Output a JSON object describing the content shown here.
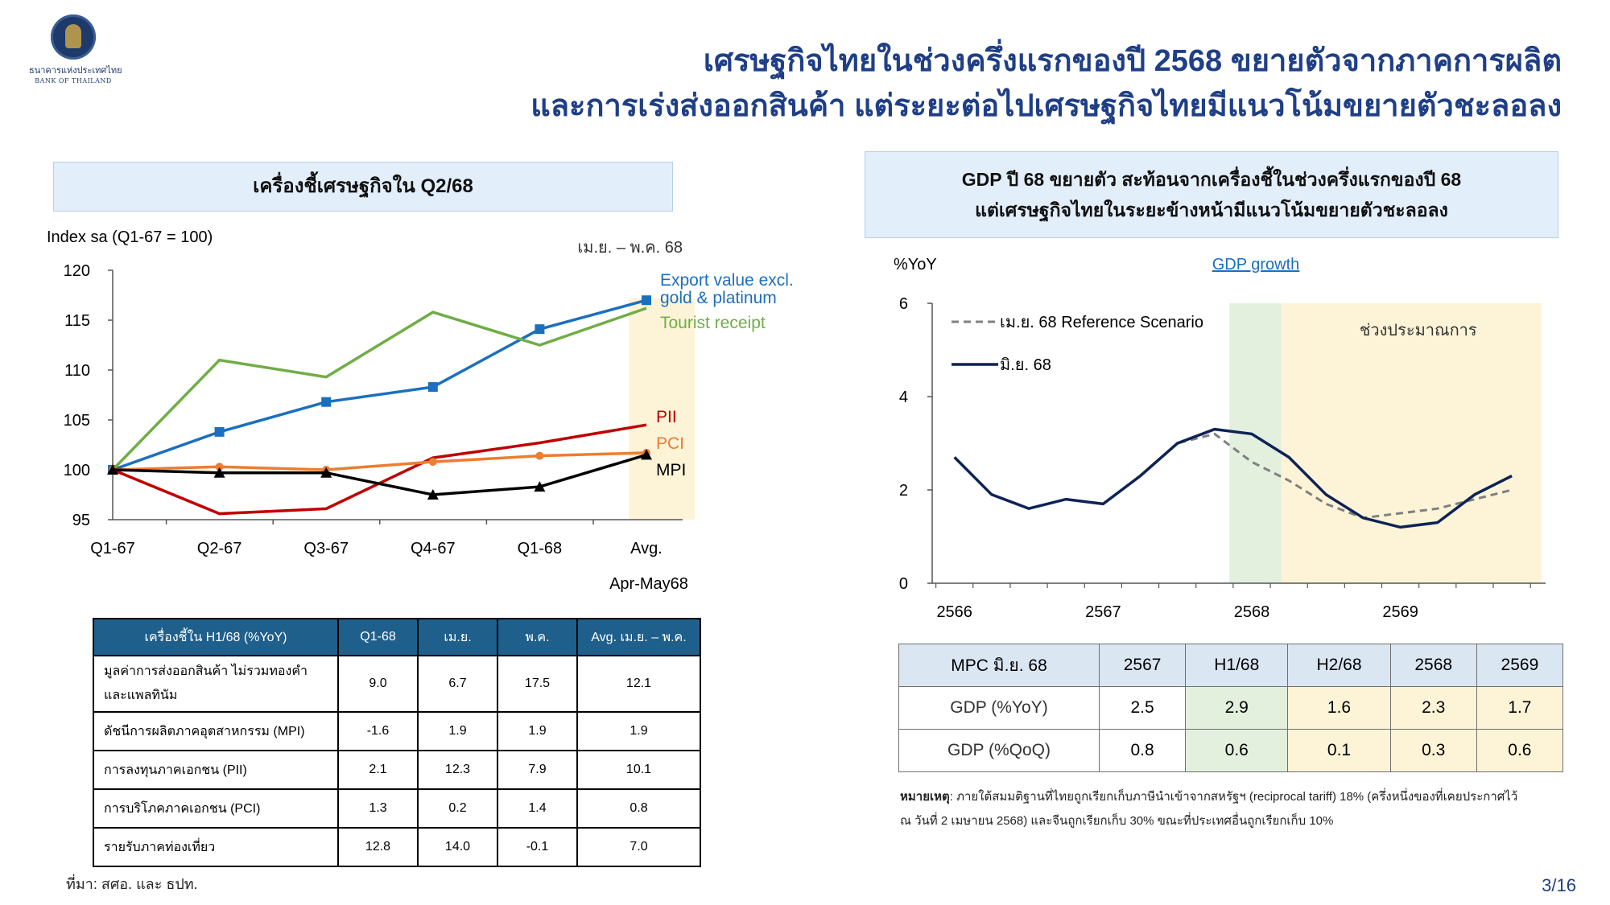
{
  "logo": {
    "thai": "ธนาคารแห่งประเทศไทย",
    "english": "BANK OF THAILAND"
  },
  "title": {
    "line1": "เศรษฐกิจไทยในช่วงครึ่งแรกของปี 2568 ขยายตัวจากภาคการผลิต",
    "line2": "และการเร่งส่งออกสินค้า แต่ระยะต่อไปเศรษฐกิจไทยมีแนวโน้มขยายตัวชะลอลง"
  },
  "left_header": "เครื่องชี้เศรษฐกิจใน Q2/68",
  "right_header": {
    "line1": "GDP ปี 68 ขยายตัว สะท้อนจากเครื่องชี้ในช่วงครึ่งแรกของปี 68",
    "line2": "แต่เศรษฐกิจไทยในระยะข้างหน้ามีแนวโน้มขยายตัวชะลอลง"
  },
  "chart_data": [
    {
      "type": "line",
      "ylabel": "Index sa (Q1-67 = 100)",
      "categories": [
        "Q1-67",
        "Q2-67",
        "Q3-67",
        "Q4-67",
        "Q1-68",
        "Avg."
      ],
      "extra_label": "Apr-May68",
      "shaded_label": "เม.ย. – พ.ค. 68",
      "ylim": [
        95,
        120
      ],
      "yticks": [
        95,
        100,
        105,
        110,
        115,
        120
      ],
      "series": [
        {
          "name": "Export value excl. gold & platinum",
          "name_line1": "Export value excl.",
          "name_line2": "gold & platinum",
          "color": "#1b6fbf",
          "marker": "square",
          "values": [
            100,
            103.8,
            106.8,
            108.3,
            114.1,
            117
          ]
        },
        {
          "name": "Tourist receipt",
          "color": "#70ad47",
          "marker": "none",
          "values": [
            100,
            111,
            109.3,
            115.8,
            112.5,
            116.2
          ]
        },
        {
          "name": "PII",
          "color": "#c00000",
          "marker": "none",
          "values": [
            100,
            95.6,
            96.1,
            101.2,
            102.7,
            104.5
          ]
        },
        {
          "name": "PCI",
          "color": "#ed7d31",
          "marker": "circle",
          "values": [
            100,
            100.3,
            100,
            100.8,
            101.4,
            101.7
          ]
        },
        {
          "name": "MPI",
          "color": "#000000",
          "marker": "triangle",
          "values": [
            100,
            99.7,
            99.7,
            97.5,
            98.3,
            101.5
          ]
        }
      ]
    },
    {
      "type": "line",
      "ylabel": "%YoY",
      "title": "GDP growth",
      "x_ticks": [
        "2566",
        "2567",
        "2568",
        "2569"
      ],
      "ylim": [
        0,
        6
      ],
      "yticks": [
        0,
        2,
        4,
        6
      ],
      "shaded_forecast_label": "ช่วงประมาณการ",
      "series": [
        {
          "name": "เม.ย. 68 Reference Scenario",
          "color": "#808080",
          "dash": true,
          "x": [
            2566.0,
            2566.25,
            2566.5,
            2566.75,
            2567.0,
            2567.25,
            2567.5,
            2567.75,
            2568.0,
            2568.25,
            2568.5,
            2568.75,
            2569.0,
            2569.25,
            2569.5,
            2569.75
          ],
          "values": [
            2.7,
            1.9,
            1.6,
            1.8,
            1.7,
            2.3,
            3.0,
            3.2,
            2.6,
            2.2,
            1.7,
            1.4,
            1.5,
            1.6,
            1.8,
            2.0
          ]
        },
        {
          "name": "มิ.ย. 68",
          "color": "#0d2357",
          "dash": false,
          "x": [
            2566.0,
            2566.25,
            2566.5,
            2566.75,
            2567.0,
            2567.25,
            2567.5,
            2567.75,
            2568.0,
            2568.25,
            2568.5,
            2568.75,
            2569.0,
            2569.25,
            2569.5,
            2569.75
          ],
          "values": [
            2.7,
            1.9,
            1.6,
            1.8,
            1.7,
            2.3,
            3.0,
            3.3,
            3.2,
            2.7,
            1.9,
            1.4,
            1.2,
            1.3,
            1.9,
            2.3
          ]
        }
      ]
    }
  ],
  "left_table": {
    "headers": [
      "เครื่องชี้ใน H1/68 (%YoY)",
      "Q1-68",
      "เม.ย.",
      "พ.ค.",
      "Avg. เม.ย. – พ.ค."
    ],
    "rows": [
      {
        "label": "มูลค่าการส่งออกสินค้า ไม่รวมทองคำและแพลทินัม",
        "label1": "มูลค่าการส่งออกสินค้า ไม่รวมทองคำ",
        "label2": "และแพลทินัม",
        "values": [
          "9.0",
          "6.7",
          "17.5",
          "12.1"
        ]
      },
      {
        "label": "ดัชนีการผลิตภาคอุตสาหกรรม (MPI)",
        "values": [
          "-1.6",
          "1.9",
          "1.9",
          "1.9"
        ]
      },
      {
        "label": "การลงทุนภาคเอกชน (PII)",
        "values": [
          "2.1",
          "12.3",
          "7.9",
          "10.1"
        ]
      },
      {
        "label": "การบริโภคภาคเอกชน (PCI)",
        "values": [
          "1.3",
          "0.2",
          "1.4",
          "0.8"
        ]
      },
      {
        "label": "รายรับภาคท่องเที่ยว",
        "values": [
          "12.8",
          "14.0",
          "-0.1",
          "7.0"
        ]
      }
    ]
  },
  "right_table": {
    "headers": [
      "MPC มิ.ย. 68",
      "2567",
      "H1/68",
      "H2/68",
      "2568",
      "2569"
    ],
    "rows": [
      {
        "label": "GDP (%YoY)",
        "values": [
          "2.5",
          "2.9",
          "1.6",
          "2.3",
          "1.7"
        ]
      },
      {
        "label": "GDP (%QoQ)",
        "values": [
          "0.8",
          "0.6",
          "0.1",
          "0.3",
          "0.6"
        ]
      }
    ]
  },
  "note": {
    "bold": "หมายเหตุ",
    "text": ": ภายใต้สมมติฐานที่ไทยถูกเรียกเก็บภาษีนำเข้าจากสหรัฐฯ (reciprocal tariff) 18% (ครึ่งหนึ่งของที่เคยประกาศไว้",
    "text2": "ณ วันที่ 2 เมษายน 2568) และจีนถูกเรียกเก็บ 30% ขณะที่ประเทศอื่นถูกเรียกเก็บ 10%"
  },
  "source": "ที่มา: สศอ. และ ธปท.",
  "page_number": "3/16"
}
